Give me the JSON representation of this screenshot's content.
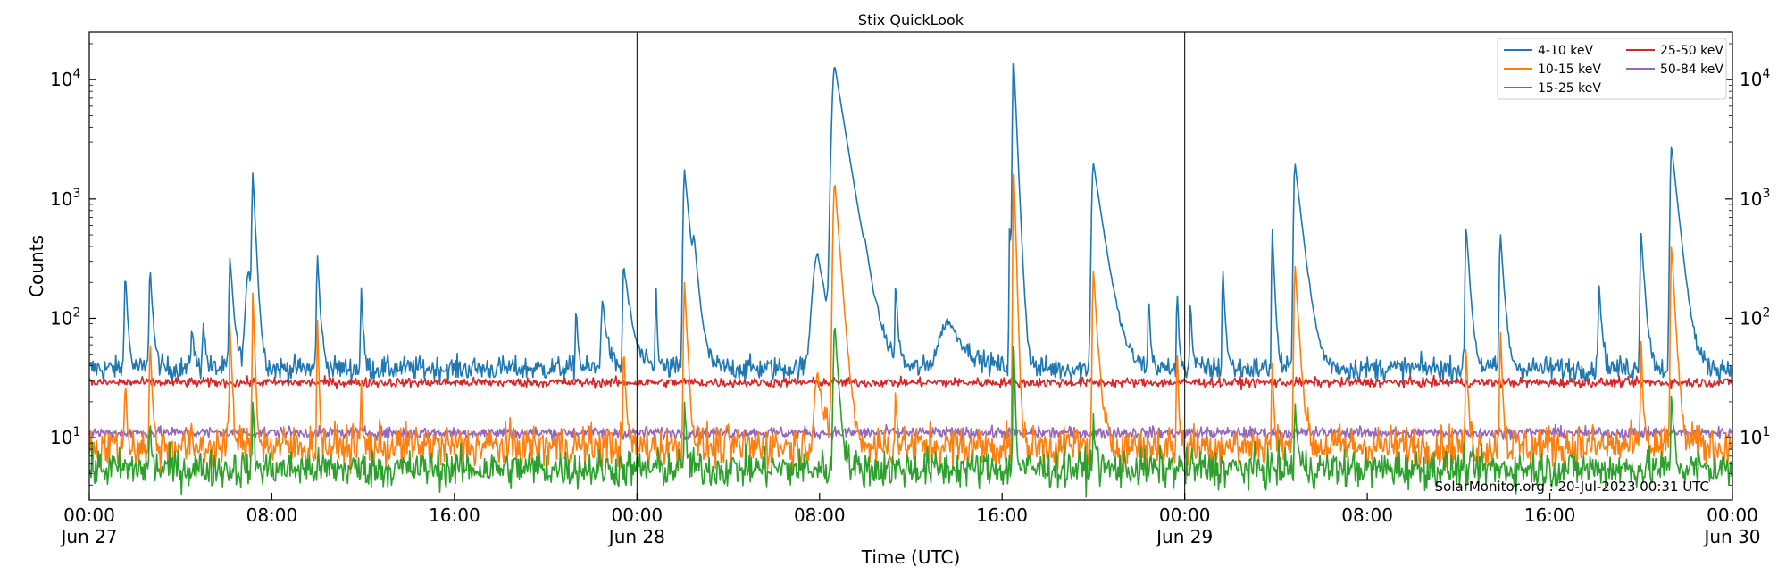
{
  "chart_data": {
    "type": "line",
    "title": "Stix QuickLook",
    "xlabel": "Time (UTC)",
    "ylabel": "Counts",
    "y_scale": "log",
    "ylim": [
      3,
      25000
    ],
    "x_range": [
      "2023-06-27T00:00",
      "2023-06-30T00:00"
    ],
    "grid": false,
    "legend_position": "top-right",
    "x_ticks": [
      {
        "time": "2023-06-27T00:00",
        "lines": [
          "00:00",
          "Jun 27"
        ]
      },
      {
        "time": "2023-06-27T08:00",
        "lines": [
          "08:00"
        ]
      },
      {
        "time": "2023-06-27T16:00",
        "lines": [
          "16:00"
        ]
      },
      {
        "time": "2023-06-28T00:00",
        "lines": [
          "00:00",
          "Jun 28"
        ]
      },
      {
        "time": "2023-06-28T08:00",
        "lines": [
          "08:00"
        ]
      },
      {
        "time": "2023-06-28T16:00",
        "lines": [
          "16:00"
        ]
      },
      {
        "time": "2023-06-29T00:00",
        "lines": [
          "00:00",
          "Jun 29"
        ]
      },
      {
        "time": "2023-06-29T08:00",
        "lines": [
          "08:00"
        ]
      },
      {
        "time": "2023-06-29T16:00",
        "lines": [
          "16:00"
        ]
      },
      {
        "time": "2023-06-30T00:00",
        "lines": [
          "00:00",
          "Jun 30"
        ]
      }
    ],
    "y_ticks": [
      {
        "value": 10,
        "label": "10",
        "exp": "1"
      },
      {
        "value": 100,
        "label": "10",
        "exp": "2"
      },
      {
        "value": 1000,
        "label": "10",
        "exp": "3"
      },
      {
        "value": 10000,
        "label": "10",
        "exp": "4"
      }
    ],
    "day_separators": [
      "2023-06-28T00:00",
      "2023-06-29T00:00"
    ],
    "annotation": "SolarMonitor.org : 20-Jul-2023 00:31 UTC",
    "series": [
      {
        "name": "4-10 keV",
        "color": "#1f77b4",
        "baseline": 38,
        "noise": 0.05,
        "peaks": [
          {
            "t": "2023-06-27T01:35",
            "peak": 250,
            "rise_min": 3,
            "decay_min": 5
          },
          {
            "t": "2023-06-27T02:40",
            "peak": 270,
            "rise_min": 3,
            "decay_min": 6
          },
          {
            "t": "2023-06-27T04:30",
            "peak": 90,
            "rise_min": 3,
            "decay_min": 5
          },
          {
            "t": "2023-06-27T05:00",
            "peak": 95,
            "rise_min": 3,
            "decay_min": 5
          },
          {
            "t": "2023-06-27T06:10",
            "peak": 320,
            "rise_min": 3,
            "decay_min": 8
          },
          {
            "t": "2023-06-27T07:00",
            "peak": 250,
            "rise_min": 10,
            "decay_min": 10
          },
          {
            "t": "2023-06-27T07:10",
            "peak": 1600,
            "rise_min": 3,
            "decay_min": 6
          },
          {
            "t": "2023-06-27T10:00",
            "peak": 330,
            "rise_min": 3,
            "decay_min": 6
          },
          {
            "t": "2023-06-27T11:55",
            "peak": 190,
            "rise_min": 2,
            "decay_min": 4
          },
          {
            "t": "2023-06-27T21:20",
            "peak": 130,
            "rise_min": 2,
            "decay_min": 4
          },
          {
            "t": "2023-06-27T22:30",
            "peak": 140,
            "rise_min": 5,
            "decay_min": 10
          },
          {
            "t": "2023-06-27T23:25",
            "peak": 280,
            "rise_min": 3,
            "decay_min": 15
          },
          {
            "t": "2023-06-28T00:50",
            "peak": 190,
            "rise_min": 2,
            "decay_min": 3
          },
          {
            "t": "2023-06-28T02:05",
            "peak": 1750,
            "rise_min": 4,
            "decay_min": 12
          },
          {
            "t": "2023-06-28T02:30",
            "peak": 280,
            "rise_min": 4,
            "decay_min": 10
          },
          {
            "t": "2023-06-28T07:55",
            "peak": 350,
            "rise_min": 15,
            "decay_min": 20
          },
          {
            "t": "2023-06-28T08:40",
            "peak": 13000,
            "rise_min": 8,
            "decay_min": 22
          },
          {
            "t": "2023-06-28T10:00",
            "peak": 110,
            "rise_min": 4,
            "decay_min": 10
          },
          {
            "t": "2023-06-28T11:20",
            "peak": 190,
            "rise_min": 2,
            "decay_min": 5
          },
          {
            "t": "2023-06-28T13:40",
            "peak": 95,
            "rise_min": 30,
            "decay_min": 40
          },
          {
            "t": "2023-06-28T16:20",
            "peak": 650,
            "rise_min": 2,
            "decay_min": 4
          },
          {
            "t": "2023-06-28T16:30",
            "peak": 16000,
            "rise_min": 3,
            "decay_min": 6
          },
          {
            "t": "2023-06-28T20:00",
            "peak": 2000,
            "rise_min": 5,
            "decay_min": 20
          },
          {
            "t": "2023-06-28T22:25",
            "peak": 160,
            "rise_min": 2,
            "decay_min": 4
          },
          {
            "t": "2023-06-28T23:40",
            "peak": 170,
            "rise_min": 2,
            "decay_min": 4
          },
          {
            "t": "2023-06-29T00:15",
            "peak": 140,
            "rise_min": 2,
            "decay_min": 4
          },
          {
            "t": "2023-06-29T01:40",
            "peak": 280,
            "rise_min": 2,
            "decay_min": 5
          },
          {
            "t": "2023-06-29T03:50",
            "peak": 600,
            "rise_min": 2,
            "decay_min": 5
          },
          {
            "t": "2023-06-29T04:50",
            "peak": 2000,
            "rise_min": 4,
            "decay_min": 15
          },
          {
            "t": "2023-06-29T12:20",
            "peak": 600,
            "rise_min": 3,
            "decay_min": 8
          },
          {
            "t": "2023-06-29T13:50",
            "peak": 520,
            "rise_min": 3,
            "decay_min": 8
          },
          {
            "t": "2023-06-29T18:10",
            "peak": 190,
            "rise_min": 3,
            "decay_min": 6
          },
          {
            "t": "2023-06-29T20:00",
            "peak": 520,
            "rise_min": 3,
            "decay_min": 8
          },
          {
            "t": "2023-06-29T21:20",
            "peak": 2800,
            "rise_min": 4,
            "decay_min": 14
          }
        ]
      },
      {
        "name": "10-15 keV",
        "color": "#ff7f0e",
        "baseline": 8.5,
        "noise": 0.09,
        "peaks": [
          {
            "t": "2023-06-27T01:35",
            "peak": 35,
            "rise_min": 2,
            "decay_min": 3
          },
          {
            "t": "2023-06-27T02:40",
            "peak": 70,
            "rise_min": 2,
            "decay_min": 4
          },
          {
            "t": "2023-06-27T06:10",
            "peak": 95,
            "rise_min": 2,
            "decay_min": 4
          },
          {
            "t": "2023-06-27T07:10",
            "peak": 170,
            "rise_min": 2,
            "decay_min": 4
          },
          {
            "t": "2023-06-27T10:00",
            "peak": 95,
            "rise_min": 2,
            "decay_min": 3
          },
          {
            "t": "2023-06-27T11:55",
            "peak": 30,
            "rise_min": 2,
            "decay_min": 2
          },
          {
            "t": "2023-06-27T23:25",
            "peak": 55,
            "rise_min": 2,
            "decay_min": 5
          },
          {
            "t": "2023-06-28T02:05",
            "peak": 200,
            "rise_min": 3,
            "decay_min": 6
          },
          {
            "t": "2023-06-28T07:55",
            "peak": 35,
            "rise_min": 10,
            "decay_min": 12
          },
          {
            "t": "2023-06-28T08:40",
            "peak": 1400,
            "rise_min": 5,
            "decay_min": 10
          },
          {
            "t": "2023-06-28T11:20",
            "peak": 25,
            "rise_min": 2,
            "decay_min": 3
          },
          {
            "t": "2023-06-28T16:30",
            "peak": 2200,
            "rise_min": 2,
            "decay_min": 4
          },
          {
            "t": "2023-06-28T20:00",
            "peak": 250,
            "rise_min": 3,
            "decay_min": 8
          },
          {
            "t": "2023-06-28T23:40",
            "peak": 60,
            "rise_min": 2,
            "decay_min": 3
          },
          {
            "t": "2023-06-29T03:50",
            "peak": 50,
            "rise_min": 2,
            "decay_min": 3
          },
          {
            "t": "2023-06-29T04:50",
            "peak": 280,
            "rise_min": 3,
            "decay_min": 8
          },
          {
            "t": "2023-06-29T12:20",
            "peak": 60,
            "rise_min": 2,
            "decay_min": 4
          },
          {
            "t": "2023-06-29T13:50",
            "peak": 85,
            "rise_min": 2,
            "decay_min": 4
          },
          {
            "t": "2023-06-29T20:00",
            "peak": 60,
            "rise_min": 2,
            "decay_min": 4
          },
          {
            "t": "2023-06-29T21:20",
            "peak": 420,
            "rise_min": 3,
            "decay_min": 7
          }
        ]
      },
      {
        "name": "15-25 keV",
        "color": "#2ca02c",
        "baseline": 5.5,
        "noise": 0.08,
        "peaks": [
          {
            "t": "2023-06-27T02:40",
            "peak": 15,
            "rise_min": 2,
            "decay_min": 3
          },
          {
            "t": "2023-06-27T07:10",
            "peak": 20,
            "rise_min": 2,
            "decay_min": 3
          },
          {
            "t": "2023-06-28T02:05",
            "peak": 20,
            "rise_min": 2,
            "decay_min": 4
          },
          {
            "t": "2023-06-28T08:40",
            "peak": 90,
            "rise_min": 4,
            "decay_min": 8
          },
          {
            "t": "2023-06-28T16:30",
            "peak": 80,
            "rise_min": 2,
            "decay_min": 3
          },
          {
            "t": "2023-06-28T20:00",
            "peak": 15,
            "rise_min": 2,
            "decay_min": 5
          },
          {
            "t": "2023-06-29T04:50",
            "peak": 20,
            "rise_min": 2,
            "decay_min": 5
          },
          {
            "t": "2023-06-29T21:20",
            "peak": 25,
            "rise_min": 2,
            "decay_min": 5
          }
        ]
      },
      {
        "name": "25-50 keV",
        "color": "#d62728",
        "baseline": 29,
        "noise": 0.02,
        "peaks": []
      },
      {
        "name": "50-84 keV",
        "color": "#9467bd",
        "baseline": 11,
        "noise": 0.025,
        "peaks": []
      }
    ]
  }
}
